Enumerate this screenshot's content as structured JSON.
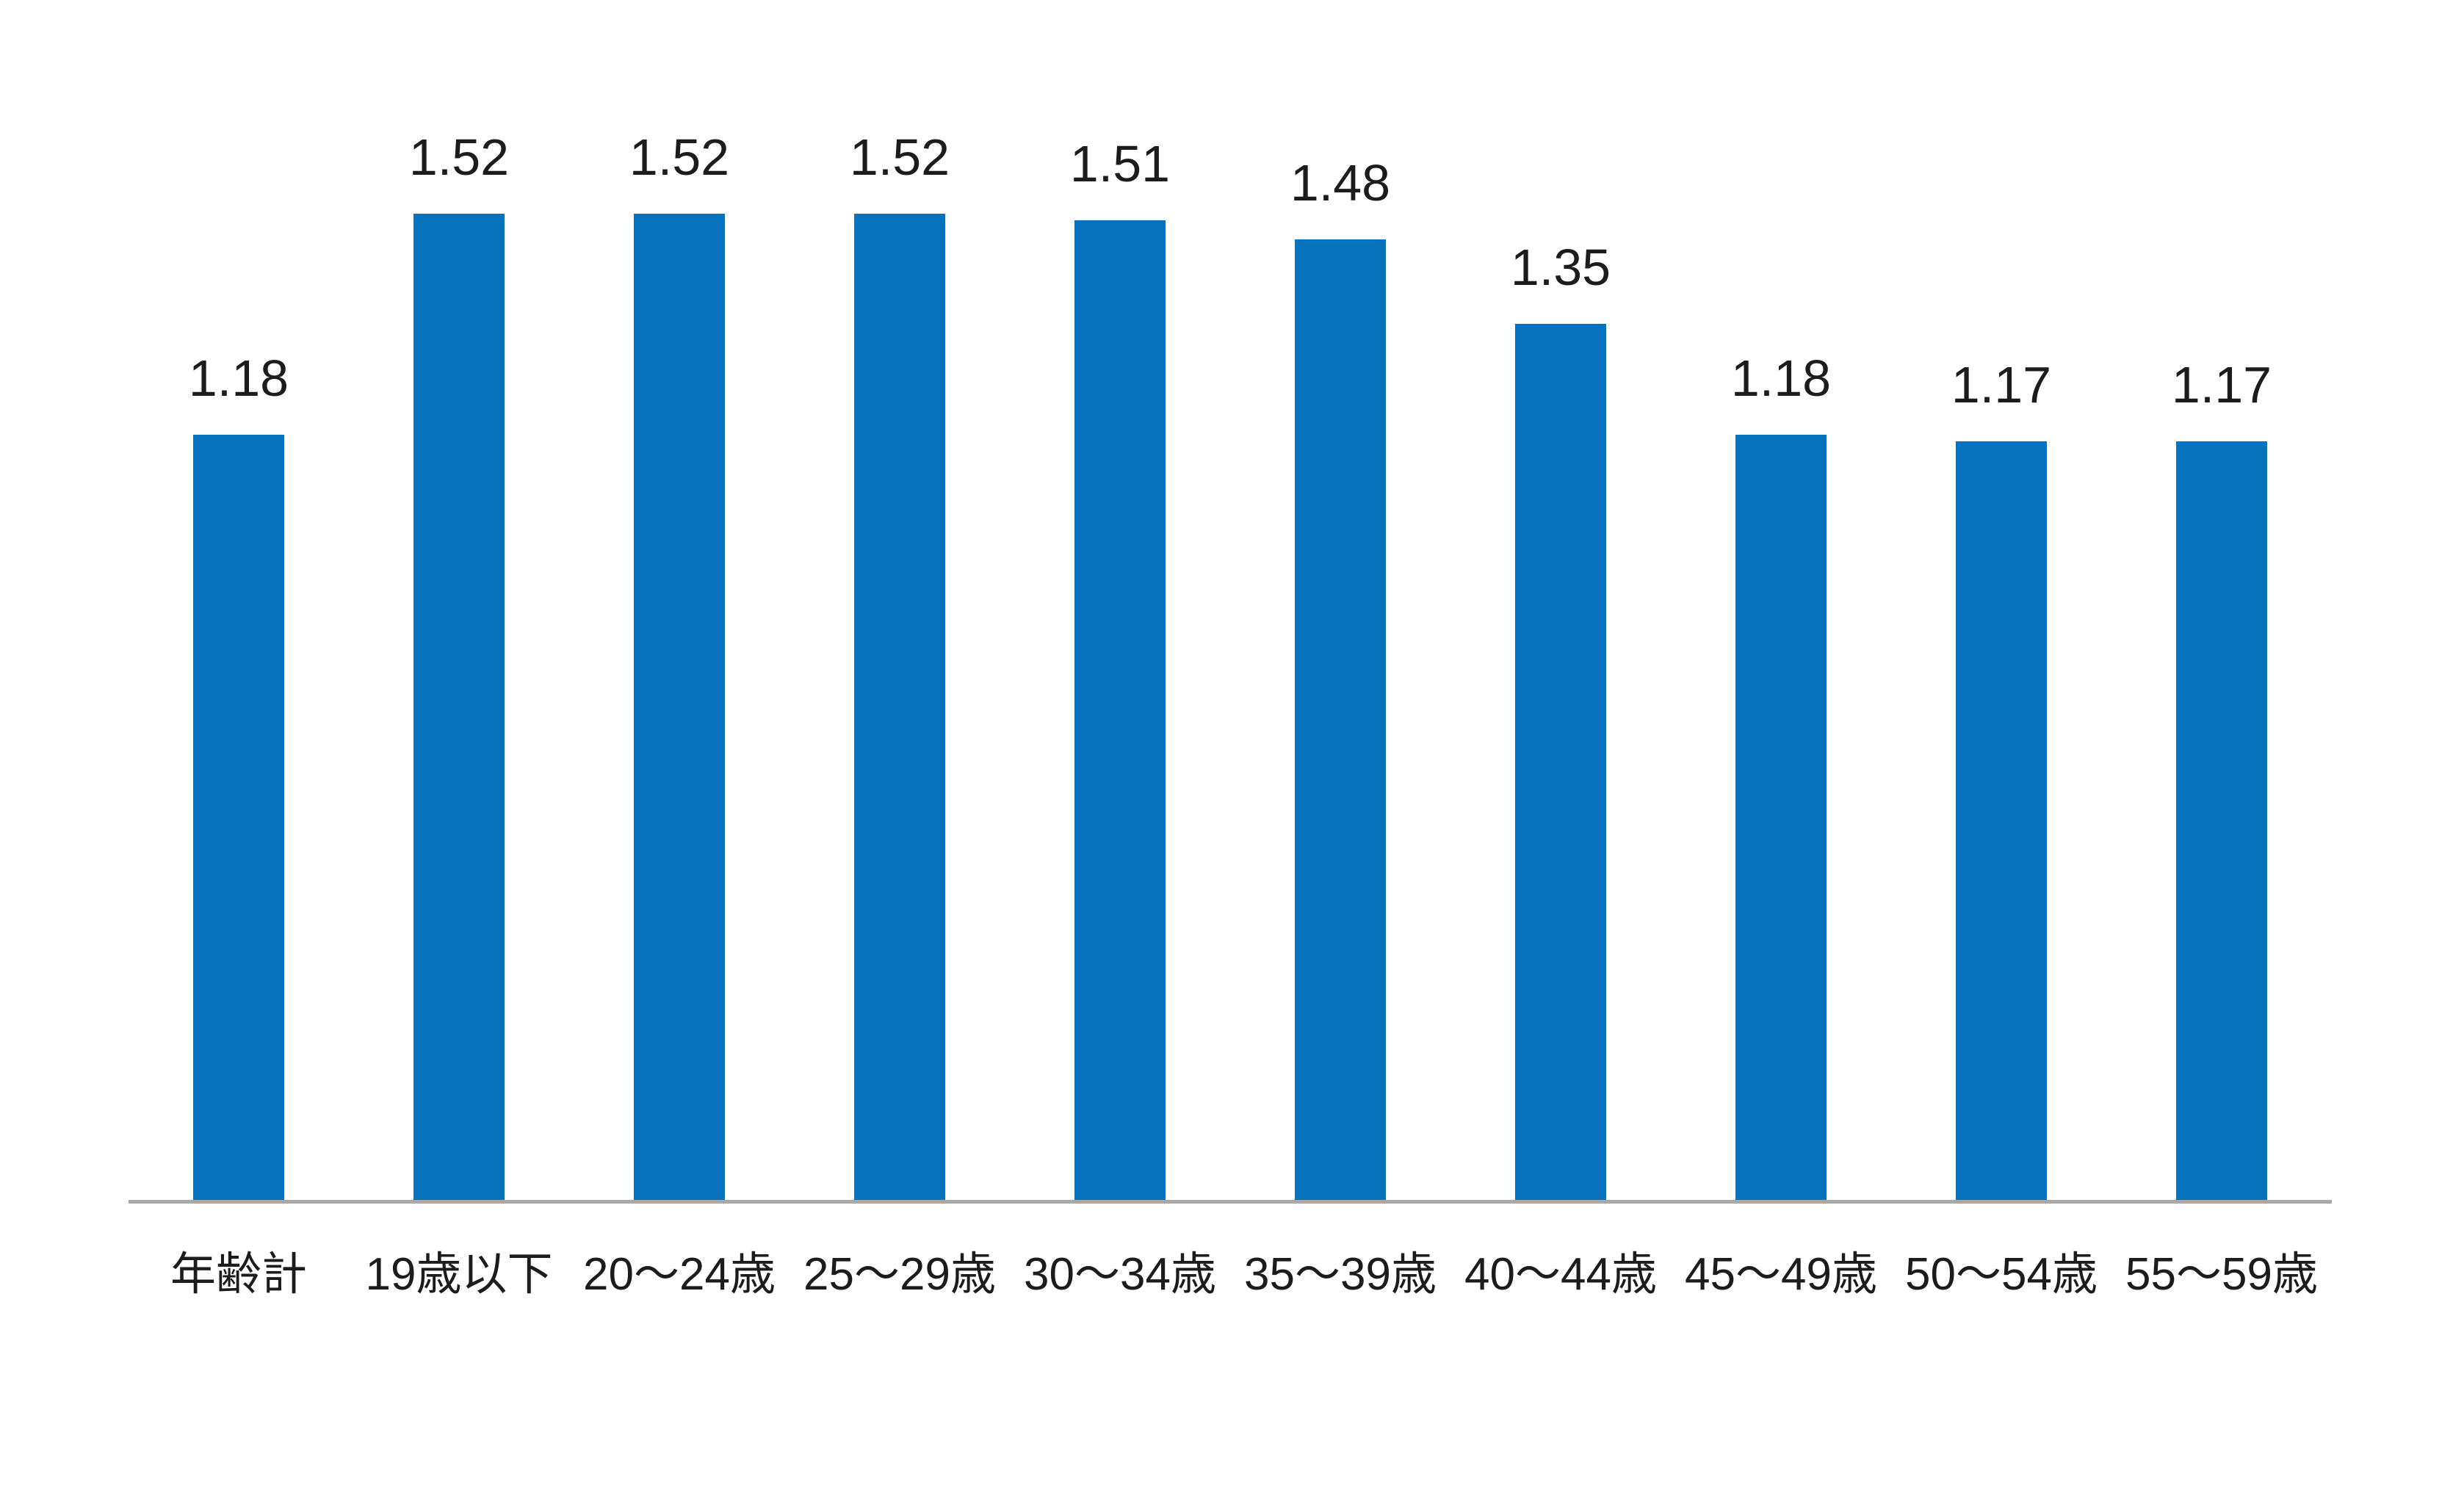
{
  "chart_data": {
    "type": "bar",
    "title": "",
    "xlabel": "",
    "ylabel": "",
    "categories": [
      "年齢計",
      "19歳以下",
      "20〜24歳",
      "25〜29歳",
      "30〜34歳",
      "35〜39歳",
      "40〜44歳",
      "45〜49歳",
      "50〜54歳",
      "55〜59歳"
    ],
    "values": [
      1.18,
      1.52,
      1.52,
      1.52,
      1.51,
      1.48,
      1.35,
      1.18,
      1.17,
      1.17
    ],
    "value_labels": [
      "1.18",
      "1.52",
      "1.52",
      "1.52",
      "1.51",
      "1.48",
      "1.35",
      "1.18",
      "1.17",
      "1.17"
    ],
    "ylim": [
      0,
      1.6
    ],
    "grid": false,
    "legend": false,
    "y_axis_visible": false,
    "bar_color": "#0772BE",
    "axis_line_color": "#A8A8A8",
    "label_color": "#1C1C1C"
  }
}
